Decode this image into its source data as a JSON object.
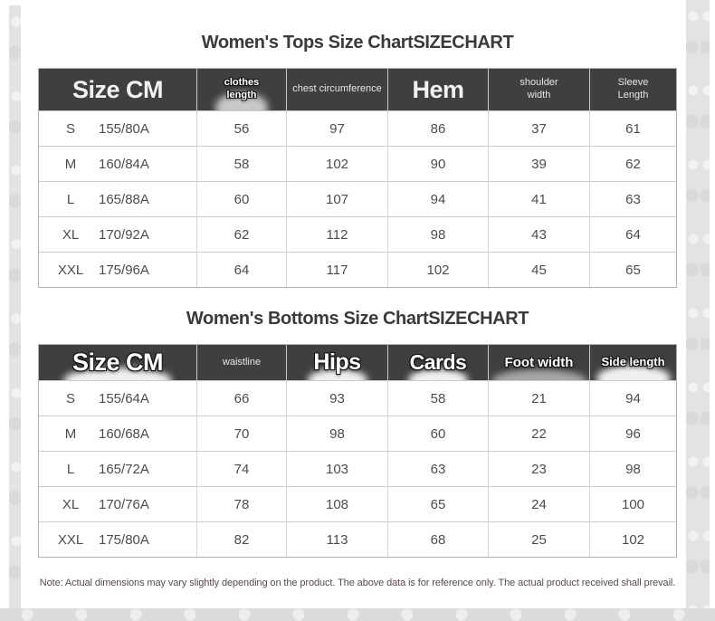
{
  "colors": {
    "header_bg": "#3f3f3f",
    "title_text": "#3a3a3a",
    "body_text": "#4c4c4c",
    "note_text": "#5a4b46",
    "edge_strip": "#e3e3e3"
  },
  "tops": {
    "title": "Women's Tops Size ChartSIZECHART",
    "columns": [
      "Size CM",
      "clothes length",
      "chest circumference",
      "Hem",
      "shoulder width",
      "Sleeve Length"
    ],
    "rows": [
      {
        "size": "S",
        "spec": "155/80A",
        "values": [
          "56",
          "97",
          "86",
          "37",
          "61"
        ]
      },
      {
        "size": "M",
        "spec": "160/84A",
        "values": [
          "58",
          "102",
          "90",
          "39",
          "62"
        ]
      },
      {
        "size": "L",
        "spec": "165/88A",
        "values": [
          "60",
          "107",
          "94",
          "41",
          "63"
        ]
      },
      {
        "size": "XL",
        "spec": "170/92A",
        "values": [
          "62",
          "112",
          "98",
          "43",
          "64"
        ]
      },
      {
        "size": "XXL",
        "spec": "175/96A",
        "values": [
          "64",
          "117",
          "102",
          "45",
          "65"
        ]
      }
    ]
  },
  "bottoms": {
    "title": "Women's Bottoms Size ChartSIZECHART",
    "columns": [
      "Size CM",
      "waistline",
      "Hips",
      "Cards",
      "Foot width",
      "Side length"
    ],
    "rows": [
      {
        "size": "S",
        "spec": "155/64A",
        "values": [
          "66",
          "93",
          "58",
          "21",
          "94"
        ]
      },
      {
        "size": "M",
        "spec": "160/68A",
        "values": [
          "70",
          "98",
          "60",
          "22",
          "96"
        ]
      },
      {
        "size": "L",
        "spec": "165/72A",
        "values": [
          "74",
          "103",
          "63",
          "23",
          "98"
        ]
      },
      {
        "size": "XL",
        "spec": "170/76A",
        "values": [
          "78",
          "108",
          "65",
          "24",
          "100"
        ]
      },
      {
        "size": "XXL",
        "spec": "175/80A",
        "values": [
          "82",
          "113",
          "68",
          "25",
          "102"
        ]
      }
    ]
  },
  "note": {
    "text": "Note: Actual dimensions may vary slightly depending on the product. The above data is for reference only. The actual product received shall prevail."
  }
}
